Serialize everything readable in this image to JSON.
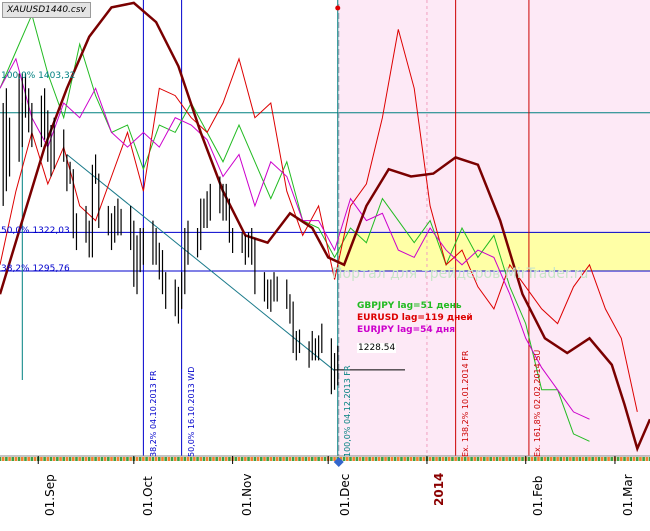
{
  "file_name": "XAUUSD1440.csv",
  "watermark": "Портал для трейдеров MirTrader.ru",
  "price_marker": "1228.54",
  "levels": [
    {
      "label": "100,0% 1403,32",
      "value": 1403.32,
      "color": "#008080"
    },
    {
      "label": "50,0% 1322,03",
      "value": 1322.03,
      "color": "#0000cc"
    },
    {
      "label": "38,2% 1295,76",
      "value": 1295.76,
      "color": "#0000cc"
    }
  ],
  "lag_labels": [
    {
      "text": "GBPJPY lag=51 день",
      "color": "#22bb22"
    },
    {
      "text": "EURUSD lag=119 дней",
      "color": "#dd0000"
    },
    {
      "text": "EURJPY lag=54 дня",
      "color": "#cc00cc"
    }
  ],
  "vertical_labels": [
    {
      "text": "38,2% 04.10.2013 FR",
      "date": "2013-10-04",
      "color": "#0000cc"
    },
    {
      "text": "50,0% 16.10.2013 WD",
      "date": "2013-10-16",
      "color": "#0000cc"
    },
    {
      "text": "100,0% 04.12.2013 FR",
      "date": "2013-12-04",
      "color": "#008080"
    },
    {
      "text": "Ex. 138,2% 10.01.2014 FR",
      "date": "2014-01-10",
      "color": "#cc0000"
    },
    {
      "text": "Ex. 161,8% 02.02.2014 SU",
      "date": "2014-02-02",
      "color": "#cc0000"
    }
  ],
  "x_ticks": [
    {
      "label": "01.Sep",
      "date": "2013-09-01",
      "bold": false
    },
    {
      "label": "01.Oct",
      "date": "2013-10-01",
      "bold": false
    },
    {
      "label": "01.Nov",
      "date": "2013-11-01",
      "bold": false
    },
    {
      "label": "01.Dec",
      "date": "2013-12-01",
      "bold": false
    },
    {
      "label": "2014",
      "date": "2014-01-01",
      "bold": true
    },
    {
      "label": "01.Feb",
      "date": "2014-02-01",
      "bold": false
    },
    {
      "label": "01.Mar",
      "date": "2014-03-01",
      "bold": false
    }
  ],
  "chart_data": {
    "type": "line",
    "title": "XAUUSD1440.csv",
    "x_range": [
      "2013-08-20",
      "2014-03-12"
    ],
    "y_range": [
      1170,
      1480
    ],
    "forecast_start": "2013-12-04",
    "highlight_band": [
      1295.76,
      1322.03
    ],
    "ohlc_bars": [
      {
        "x": "2013-08-21",
        "low": 1340,
        "high": 1410
      },
      {
        "x": "2013-08-22",
        "low": 1350,
        "high": 1420
      },
      {
        "x": "2013-08-23",
        "low": 1360,
        "high": 1400
      },
      {
        "x": "2013-08-26",
        "low": 1370,
        "high": 1430
      },
      {
        "x": "2013-08-27",
        "low": 1380,
        "high": 1430
      },
      {
        "x": "2013-08-28",
        "low": 1400,
        "high": 1430
      },
      {
        "x": "2013-08-29",
        "low": 1390,
        "high": 1420
      },
      {
        "x": "2013-08-30",
        "low": 1380,
        "high": 1410
      },
      {
        "x": "2013-09-02",
        "low": 1380,
        "high": 1415
      },
      {
        "x": "2013-09-03",
        "low": 1385,
        "high": 1420
      },
      {
        "x": "2013-09-04",
        "low": 1370,
        "high": 1405
      },
      {
        "x": "2013-09-05",
        "low": 1360,
        "high": 1395
      },
      {
        "x": "2013-09-06",
        "low": 1365,
        "high": 1400
      },
      {
        "x": "2013-09-09",
        "low": 1370,
        "high": 1392
      },
      {
        "x": "2013-09-10",
        "low": 1350,
        "high": 1375
      },
      {
        "x": "2013-09-11",
        "low": 1355,
        "high": 1370
      },
      {
        "x": "2013-09-12",
        "low": 1318,
        "high": 1365
      },
      {
        "x": "2013-09-13",
        "low": 1310,
        "high": 1335
      },
      {
        "x": "2013-09-16",
        "low": 1315,
        "high": 1340
      },
      {
        "x": "2013-09-17",
        "low": 1305,
        "high": 1330
      },
      {
        "x": "2013-09-18",
        "low": 1305,
        "high": 1368
      },
      {
        "x": "2013-09-19",
        "low": 1355,
        "high": 1375
      },
      {
        "x": "2013-09-20",
        "low": 1325,
        "high": 1362
      },
      {
        "x": "2013-09-23",
        "low": 1320,
        "high": 1340
      },
      {
        "x": "2013-09-24",
        "low": 1310,
        "high": 1335
      },
      {
        "x": "2013-09-25",
        "low": 1315,
        "high": 1340
      },
      {
        "x": "2013-09-26",
        "low": 1320,
        "high": 1345
      },
      {
        "x": "2013-09-27",
        "low": 1320,
        "high": 1338
      },
      {
        "x": "2013-09-30",
        "low": 1310,
        "high": 1340
      },
      {
        "x": "2013-10-01",
        "low": 1285,
        "high": 1330
      },
      {
        "x": "2013-10-02",
        "low": 1280,
        "high": 1320
      },
      {
        "x": "2013-10-03",
        "low": 1295,
        "high": 1325
      },
      {
        "x": "2013-10-04",
        "low": 1300,
        "high": 1325
      },
      {
        "x": "2013-10-07",
        "low": 1300,
        "high": 1330
      },
      {
        "x": "2013-10-08",
        "low": 1300,
        "high": 1325
      },
      {
        "x": "2013-10-09",
        "low": 1290,
        "high": 1315
      },
      {
        "x": "2013-10-10",
        "low": 1280,
        "high": 1310
      },
      {
        "x": "2013-10-11",
        "low": 1270,
        "high": 1295
      },
      {
        "x": "2013-10-14",
        "low": 1265,
        "high": 1290
      },
      {
        "x": "2013-10-15",
        "low": 1260,
        "high": 1285
      },
      {
        "x": "2013-10-16",
        "low": 1270,
        "high": 1295
      },
      {
        "x": "2013-10-17",
        "low": 1280,
        "high": 1325
      },
      {
        "x": "2013-10-18",
        "low": 1300,
        "high": 1330
      },
      {
        "x": "2013-10-21",
        "low": 1305,
        "high": 1325
      },
      {
        "x": "2013-10-22",
        "low": 1310,
        "high": 1345
      },
      {
        "x": "2013-10-23",
        "low": 1325,
        "high": 1345
      },
      {
        "x": "2013-10-24",
        "low": 1325,
        "high": 1350
      },
      {
        "x": "2013-10-25",
        "low": 1330,
        "high": 1355
      },
      {
        "x": "2013-10-28",
        "low": 1335,
        "high": 1360
      },
      {
        "x": "2013-10-29",
        "low": 1330,
        "high": 1355
      },
      {
        "x": "2013-10-30",
        "low": 1330,
        "high": 1355
      },
      {
        "x": "2013-10-31",
        "low": 1315,
        "high": 1345
      },
      {
        "x": "2013-11-01",
        "low": 1308,
        "high": 1325
      },
      {
        "x": "2013-11-04",
        "low": 1308,
        "high": 1322
      },
      {
        "x": "2013-11-05",
        "low": 1300,
        "high": 1320
      },
      {
        "x": "2013-11-06",
        "low": 1305,
        "high": 1322
      },
      {
        "x": "2013-11-07",
        "low": 1300,
        "high": 1325
      },
      {
        "x": "2013-11-08",
        "low": 1280,
        "high": 1318
      },
      {
        "x": "2013-11-11",
        "low": 1275,
        "high": 1295
      },
      {
        "x": "2013-11-12",
        "low": 1270,
        "high": 1290
      },
      {
        "x": "2013-11-13",
        "low": 1268,
        "high": 1290
      },
      {
        "x": "2013-11-14",
        "low": 1275,
        "high": 1295
      },
      {
        "x": "2013-11-15",
        "low": 1275,
        "high": 1292
      },
      {
        "x": "2013-11-18",
        "low": 1270,
        "high": 1290
      },
      {
        "x": "2013-11-19",
        "low": 1260,
        "high": 1280
      },
      {
        "x": "2013-11-20",
        "low": 1240,
        "high": 1275
      },
      {
        "x": "2013-11-21",
        "low": 1235,
        "high": 1255
      },
      {
        "x": "2013-11-22",
        "low": 1240,
        "high": 1256
      },
      {
        "x": "2013-11-25",
        "low": 1230,
        "high": 1248
      },
      {
        "x": "2013-11-26",
        "low": 1235,
        "high": 1255
      },
      {
        "x": "2013-11-27",
        "low": 1235,
        "high": 1250
      },
      {
        "x": "2013-11-28",
        "low": 1235,
        "high": 1252
      },
      {
        "x": "2013-11-29",
        "low": 1240,
        "high": 1260
      },
      {
        "x": "2013-12-02",
        "low": 1212,
        "high": 1250
      },
      {
        "x": "2013-12-03",
        "low": 1215,
        "high": 1240
      },
      {
        "x": "2013-12-04",
        "low": 1218,
        "high": 1245
      }
    ],
    "series": [
      {
        "name": "GBPJPY lag=51 день",
        "color": "#22bb22",
        "points": [
          [
            "2013-08-20",
            1420
          ],
          [
            "2013-08-25",
            1445
          ],
          [
            "2013-08-30",
            1470
          ],
          [
            "2013-09-04",
            1430
          ],
          [
            "2013-09-09",
            1400
          ],
          [
            "2013-09-14",
            1450
          ],
          [
            "2013-09-19",
            1415
          ],
          [
            "2013-09-24",
            1390
          ],
          [
            "2013-09-29",
            1395
          ],
          [
            "2013-10-04",
            1365
          ],
          [
            "2013-10-09",
            1395
          ],
          [
            "2013-10-14",
            1390
          ],
          [
            "2013-10-19",
            1410
          ],
          [
            "2013-10-24",
            1390
          ],
          [
            "2013-10-29",
            1370
          ],
          [
            "2013-11-03",
            1395
          ],
          [
            "2013-11-08",
            1370
          ],
          [
            "2013-11-13",
            1345
          ],
          [
            "2013-11-18",
            1370
          ],
          [
            "2013-11-23",
            1330
          ],
          [
            "2013-11-28",
            1325
          ],
          [
            "2013-12-03",
            1305
          ],
          [
            "2013-12-08",
            1325
          ],
          [
            "2013-12-13",
            1315
          ],
          [
            "2013-12-18",
            1345
          ],
          [
            "2013-12-23",
            1330
          ],
          [
            "2013-12-28",
            1315
          ],
          [
            "2014-01-02",
            1330
          ],
          [
            "2014-01-07",
            1300
          ],
          [
            "2014-01-12",
            1325
          ],
          [
            "2014-01-17",
            1305
          ],
          [
            "2014-01-22",
            1320
          ],
          [
            "2014-01-27",
            1285
          ],
          [
            "2014-02-01",
            1260
          ],
          [
            "2014-02-06",
            1215
          ],
          [
            "2014-02-11",
            1215
          ],
          [
            "2014-02-16",
            1185
          ],
          [
            "2014-02-21",
            1180
          ]
        ]
      },
      {
        "name": "EURUSD lag=119 дней",
        "color": "#dd0000",
        "points": [
          [
            "2013-08-20",
            1300
          ],
          [
            "2013-08-25",
            1350
          ],
          [
            "2013-08-30",
            1390
          ],
          [
            "2013-09-04",
            1355
          ],
          [
            "2013-09-09",
            1380
          ],
          [
            "2013-09-14",
            1340
          ],
          [
            "2013-09-19",
            1330
          ],
          [
            "2013-09-24",
            1360
          ],
          [
            "2013-09-29",
            1390
          ],
          [
            "2013-10-04",
            1350
          ],
          [
            "2013-10-09",
            1420
          ],
          [
            "2013-10-14",
            1415
          ],
          [
            "2013-10-19",
            1400
          ],
          [
            "2013-10-24",
            1390
          ],
          [
            "2013-10-29",
            1410
          ],
          [
            "2013-11-03",
            1440
          ],
          [
            "2013-11-08",
            1400
          ],
          [
            "2013-11-13",
            1410
          ],
          [
            "2013-11-18",
            1350
          ],
          [
            "2013-11-23",
            1320
          ],
          [
            "2013-11-28",
            1340
          ],
          [
            "2013-12-03",
            1290
          ],
          [
            "2013-12-08",
            1340
          ],
          [
            "2013-12-13",
            1355
          ],
          [
            "2013-12-18",
            1400
          ],
          [
            "2013-12-23",
            1460
          ],
          [
            "2013-12-28",
            1420
          ],
          [
            "2014-01-02",
            1340
          ],
          [
            "2014-01-07",
            1300
          ],
          [
            "2014-01-12",
            1310
          ],
          [
            "2014-01-17",
            1285
          ],
          [
            "2014-01-22",
            1270
          ],
          [
            "2014-01-27",
            1300
          ],
          [
            "2014-02-01",
            1285
          ],
          [
            "2014-02-06",
            1270
          ],
          [
            "2014-02-11",
            1260
          ],
          [
            "2014-02-16",
            1285
          ],
          [
            "2014-02-21",
            1300
          ],
          [
            "2014-02-26",
            1270
          ],
          [
            "2014-03-03",
            1250
          ],
          [
            "2014-03-08",
            1200
          ]
        ]
      },
      {
        "name": "EURJPY lag=54 дня",
        "color": "#cc00cc",
        "points": [
          [
            "2013-08-20",
            1420
          ],
          [
            "2013-08-25",
            1440
          ],
          [
            "2013-08-30",
            1400
          ],
          [
            "2013-09-04",
            1380
          ],
          [
            "2013-09-09",
            1410
          ],
          [
            "2013-09-14",
            1400
          ],
          [
            "2013-09-19",
            1420
          ],
          [
            "2013-09-24",
            1390
          ],
          [
            "2013-09-29",
            1380
          ],
          [
            "2013-10-04",
            1390
          ],
          [
            "2013-10-09",
            1380
          ],
          [
            "2013-10-14",
            1400
          ],
          [
            "2013-10-19",
            1395
          ],
          [
            "2013-10-24",
            1385
          ],
          [
            "2013-10-29",
            1360
          ],
          [
            "2013-11-03",
            1375
          ],
          [
            "2013-11-08",
            1340
          ],
          [
            "2013-11-13",
            1370
          ],
          [
            "2013-11-18",
            1360
          ],
          [
            "2013-11-23",
            1330
          ],
          [
            "2013-11-28",
            1330
          ],
          [
            "2013-12-03",
            1310
          ],
          [
            "2013-12-08",
            1345
          ],
          [
            "2013-12-13",
            1330
          ],
          [
            "2013-12-18",
            1335
          ],
          [
            "2013-12-23",
            1310
          ],
          [
            "2013-12-28",
            1305
          ],
          [
            "2014-01-02",
            1325
          ],
          [
            "2014-01-07",
            1310
          ],
          [
            "2014-01-12",
            1300
          ],
          [
            "2014-01-17",
            1310
          ],
          [
            "2014-01-22",
            1305
          ],
          [
            "2014-01-27",
            1280
          ],
          [
            "2014-02-01",
            1250
          ],
          [
            "2014-02-06",
            1230
          ],
          [
            "2014-02-11",
            1215
          ],
          [
            "2014-02-16",
            1200
          ],
          [
            "2014-02-21",
            1195
          ]
        ]
      },
      {
        "name": "",
        "color": "#7a0000",
        "points": [
          [
            "2013-08-20",
            1280
          ],
          [
            "2013-08-27",
            1330
          ],
          [
            "2013-09-03",
            1380
          ],
          [
            "2013-09-10",
            1420
          ],
          [
            "2013-09-17",
            1455
          ],
          [
            "2013-09-24",
            1475
          ],
          [
            "2013-10-01",
            1478
          ],
          [
            "2013-10-08",
            1465
          ],
          [
            "2013-10-15",
            1435
          ],
          [
            "2013-10-22",
            1390
          ],
          [
            "2013-10-29",
            1350
          ],
          [
            "2013-11-05",
            1320
          ],
          [
            "2013-11-12",
            1315
          ],
          [
            "2013-11-19",
            1335
          ],
          [
            "2013-11-26",
            1325
          ],
          [
            "2013-12-01",
            1305
          ],
          [
            "2013-12-06",
            1300
          ],
          [
            "2013-12-13",
            1340
          ],
          [
            "2013-12-20",
            1365
          ],
          [
            "2013-12-27",
            1360
          ],
          [
            "2014-01-03",
            1362
          ],
          [
            "2014-01-10",
            1373
          ],
          [
            "2014-01-17",
            1368
          ],
          [
            "2014-01-24",
            1330
          ],
          [
            "2014-01-31",
            1280
          ],
          [
            "2014-02-07",
            1250
          ],
          [
            "2014-02-14",
            1240
          ],
          [
            "2014-02-21",
            1250
          ],
          [
            "2014-02-28",
            1232
          ],
          [
            "2014-03-04",
            1205
          ],
          [
            "2014-03-08",
            1175
          ],
          [
            "2014-03-12",
            1195
          ]
        ]
      }
    ],
    "trendline": [
      [
        "2013-09-10",
        1375
      ],
      [
        "2013-12-03",
        1228
      ]
    ],
    "grid": false
  }
}
